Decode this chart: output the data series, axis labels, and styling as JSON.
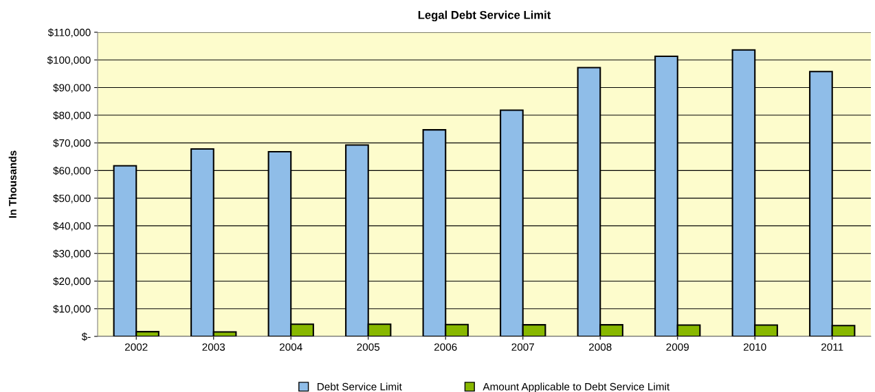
{
  "chart_data": {
    "type": "bar",
    "title": "Legal Debt Service Limit",
    "ylabel": "In Thousands",
    "categories": [
      "2002",
      "2003",
      "2004",
      "2005",
      "2006",
      "2007",
      "2008",
      "2009",
      "2010",
      "2011"
    ],
    "series": [
      {
        "name": "Debt Service Limit",
        "color": "#8fbde8",
        "values": [
          61700,
          67800,
          66800,
          69200,
          74700,
          81800,
          97200,
          101300,
          103600,
          95800
        ]
      },
      {
        "name": "Amount Applicable to Debt Service Limit",
        "color": "#88b800",
        "values": [
          1700,
          1600,
          4400,
          4400,
          4300,
          4200,
          4200,
          4100,
          4100,
          3900
        ]
      }
    ],
    "ylim": [
      0,
      110000
    ],
    "yticks": [
      {
        "value": 0,
        "label": "$-"
      },
      {
        "value": 10000,
        "label": "$10,000"
      },
      {
        "value": 20000,
        "label": "$20,000"
      },
      {
        "value": 30000,
        "label": "$30,000"
      },
      {
        "value": 40000,
        "label": "$40,000"
      },
      {
        "value": 50000,
        "label": "$50,000"
      },
      {
        "value": 60000,
        "label": "$60,000"
      },
      {
        "value": 70000,
        "label": "$70,000"
      },
      {
        "value": 80000,
        "label": "$80,000"
      },
      {
        "value": 90000,
        "label": "$90,000"
      },
      {
        "value": 100000,
        "label": "$100,000"
      },
      {
        "value": 110000,
        "label": "$110,000"
      }
    ],
    "grid": "y",
    "legend": "bottom"
  }
}
